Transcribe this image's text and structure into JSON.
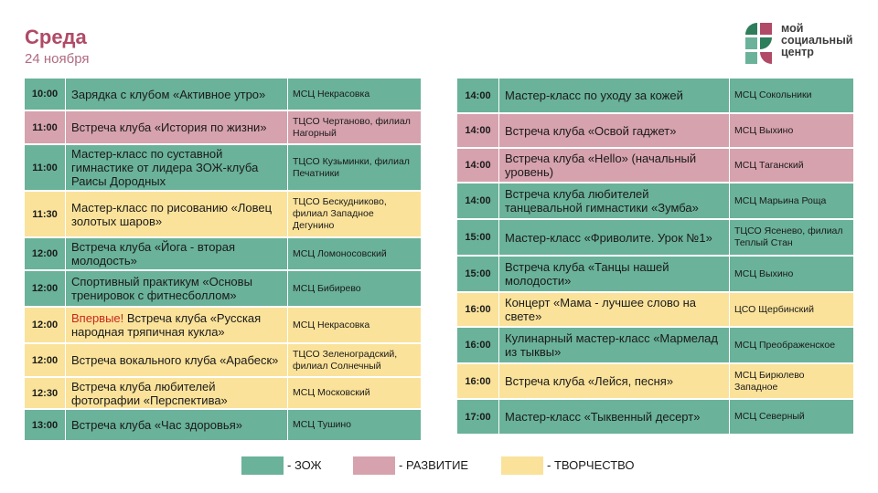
{
  "header": {
    "title": "Среда",
    "date": "24 ноября"
  },
  "logo": {
    "line1": "мой",
    "line2": "социальный",
    "line3": "центр"
  },
  "colors": {
    "zozh": "#6ab29a",
    "razvitie": "#d6a2ae",
    "tvorchestvo": "#fae29a",
    "title": "#b04a67",
    "new_tag": "#c8281c"
  },
  "left_schedule": [
    {
      "time": "10:00",
      "event": "Зарядка с клубом «Активное утро»",
      "place": "МСЦ Некрасовка",
      "category": "zozh"
    },
    {
      "time": "11:00",
      "event": "Встреча клуба «История по жизни»",
      "place": "ТЦСО Чертаново, филиал Нагорный",
      "category": "razvitie"
    },
    {
      "time": "11:00",
      "event": "Мастер-класс по суставной гимнастике от лидера ЗОЖ-клуба Раисы Дородных",
      "place": "ТЦСО Кузьминки, филиал Печатники",
      "category": "zozh"
    },
    {
      "time": "11:30",
      "event": "Мастер-класс по рисованию «Ловец золотых шаров»",
      "place": "ТЦСО Бескудниково, филиал Западное Дегунино",
      "category": "tvorchestvo"
    },
    {
      "time": "12:00",
      "event": "Встреча клуба «Йога - вторая молодость»",
      "place": "МСЦ Ломоносовский",
      "category": "zozh"
    },
    {
      "time": "12:00",
      "event": "Спортивный практикум «Основы тренировок с фитнесболлом»",
      "place": "МСЦ Бибирево",
      "category": "zozh"
    },
    {
      "time": "12:00",
      "tag": "Впервые!",
      "event": " Встреча клуба «Русская народная тряпичная кукла»",
      "place": "МСЦ Некрасовка",
      "category": "tvorchestvo"
    },
    {
      "time": "12:00",
      "event": "Встреча вокального клуба «Арабеск»",
      "place": "ТЦСО Зеленоградский, филиал Солнечный",
      "category": "tvorchestvo"
    },
    {
      "time": "12:30",
      "event": "Встреча клуба любителей фотографии «Перспектива»",
      "place": "МСЦ Московский",
      "category": "tvorchestvo"
    },
    {
      "time": "13:00",
      "event": "Встреча клуба «Час здоровья»",
      "place": "МСЦ Тушино",
      "category": "zozh"
    }
  ],
  "right_schedule": [
    {
      "time": "14:00",
      "event": "Мастер-класс по уходу за кожей",
      "place": "МСЦ Сокольники",
      "category": "zozh"
    },
    {
      "time": "14:00",
      "event": "Встреча клуба «Освой гаджет»",
      "place": "МСЦ Выхино",
      "category": "razvitie"
    },
    {
      "time": "14:00",
      "event": "Встреча клуба «Hello» (начальный уровень)",
      "place": "МСЦ Таганский",
      "category": "razvitie"
    },
    {
      "time": "14:00",
      "event": "Встреча клуба любителей танцевальной гимнастики «Зумба»",
      "place": "МСЦ Марьина Роща",
      "category": "zozh"
    },
    {
      "time": "15:00",
      "event": "Мастер-класс «Фриволите. Урок №1»",
      "place": "ТЦСО Ясенево, филиал Теплый Стан",
      "category": "zozh"
    },
    {
      "time": "15:00",
      "event": "Встреча клуба «Танцы нашей молодости»",
      "place": "МСЦ Выхино",
      "category": "zozh"
    },
    {
      "time": "16:00",
      "event": "Концерт «Мама - лучшее слово на свете»",
      "place": "ЦСО Щербинский",
      "category": "tvorchestvo"
    },
    {
      "time": "16:00",
      "event": "Кулинарный мастер-класс «Мармелад из тыквы»",
      "place": "МСЦ Преображенское",
      "category": "zozh"
    },
    {
      "time": "16:00",
      "event": "Встреча клуба «Лейся, песня»",
      "place": "МСЦ Бирюлево Западное",
      "category": "tvorchestvo"
    },
    {
      "time": "17:00",
      "event": "Мастер-класс «Тыквенный десерт»",
      "place": "МСЦ Северный",
      "category": "zozh"
    }
  ],
  "legend": [
    {
      "label": "- ЗОЖ",
      "category": "zozh"
    },
    {
      "label": "- РАЗВИТИЕ",
      "category": "razvitie"
    },
    {
      "label": "- ТВОРЧЕСТВО",
      "category": "tvorchestvo"
    }
  ]
}
